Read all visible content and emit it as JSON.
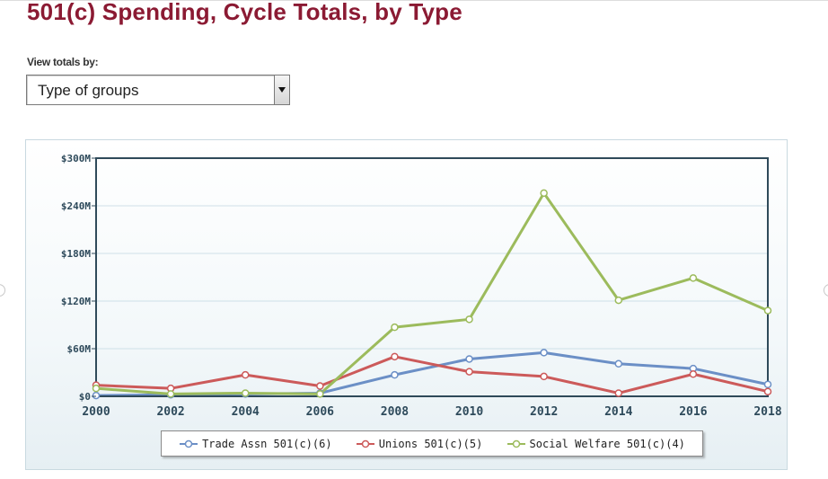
{
  "page": {
    "title": "501(c) Spending, Cycle Totals, by Type"
  },
  "controls": {
    "view_label": "View totals by:",
    "view_selected": "Type of groups"
  },
  "chart_data": {
    "type": "line",
    "title": "",
    "xlabel": "",
    "ylabel": "",
    "x": [
      2000,
      2002,
      2004,
      2006,
      2008,
      2010,
      2012,
      2014,
      2016,
      2018
    ],
    "x_tick_labels": [
      "2000",
      "2002",
      "2004",
      "2006",
      "2008",
      "2010",
      "2012",
      "2014",
      "2016",
      "2018"
    ],
    "ylim": [
      0,
      300
    ],
    "y_ticks": [
      0,
      60,
      120,
      180,
      240,
      300
    ],
    "y_tick_labels": [
      "$0",
      "$60M",
      "$120M",
      "$180M",
      "$240M",
      "$300M"
    ],
    "grid": true,
    "legend_position": "bottom",
    "series": [
      {
        "name": "Trade Assn 501(c)(6)",
        "color": "#6b8fc6",
        "values": [
          1,
          2,
          3,
          4,
          27,
          47,
          55,
          41,
          35,
          15
        ]
      },
      {
        "name": "Unions 501(c)(5)",
        "color": "#cc5a5a",
        "values": [
          14,
          10,
          27,
          13,
          50,
          31,
          25,
          4,
          28,
          6
        ]
      },
      {
        "name": "Social Welfare 501(c)(4)",
        "color": "#9cbb5c",
        "values": [
          10,
          3,
          4,
          3,
          87,
          97,
          256,
          121,
          149,
          108
        ]
      }
    ]
  }
}
